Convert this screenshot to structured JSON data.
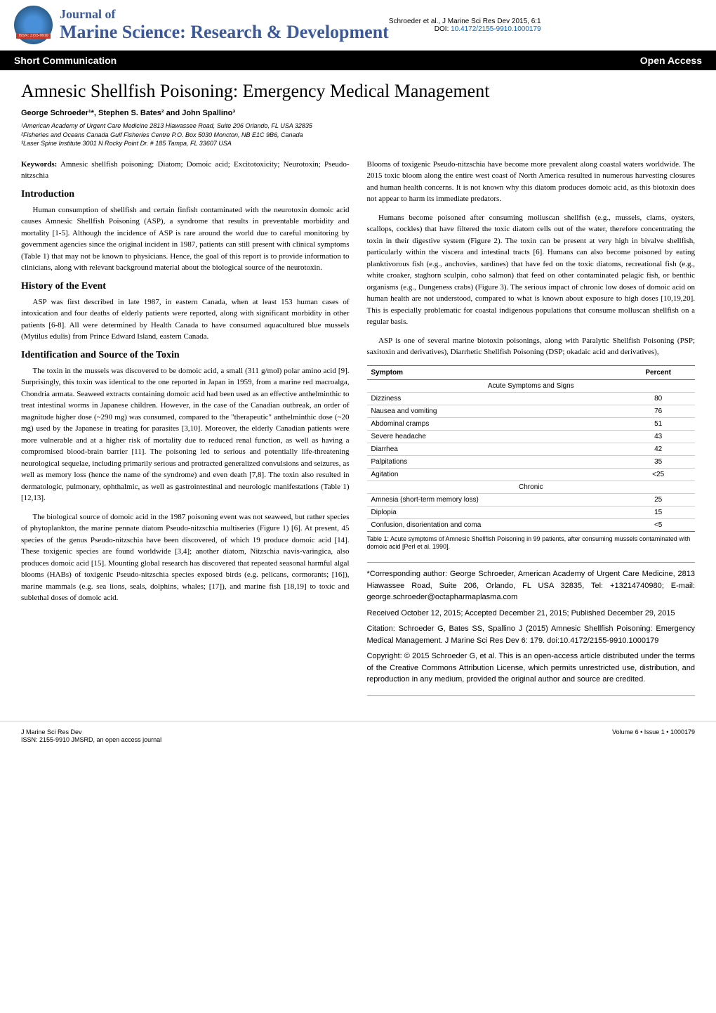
{
  "header": {
    "journal_of": "Journal of",
    "journal_name": "Marine Science: Research & Development",
    "citation": "Schroeder et al., J Marine Sci Res Dev 2015, 6:1",
    "doi_label": "DOI:",
    "doi": "10.4172/2155-9910.1000179",
    "issn_badge": "ISSN: 2155-9910"
  },
  "black_bar": {
    "left": "Short Communication",
    "right": "Open Access"
  },
  "article": {
    "title": "Amnesic Shellfish Poisoning: Emergency Medical Management",
    "authors": "George Schroeder¹*, Stephen S. Bates² and John Spallino³",
    "affil1": "¹American Academy of Urgent Care Medicine 2813 Hiawassee Road, Suite 206 Orlando, FL USA 32835",
    "affil2": "²Fisheries and Oceans Canada Gulf Fisheries Centre P.O. Box 5030 Moncton, NB E1C 9B6, Canada",
    "affil3": "³Laser Spine Institute 3001 N Rocky Point Dr. # 185 Tampa, FL 33607 USA"
  },
  "keywords": {
    "label": "Keywords:",
    "text": "Amnesic shellfish poisoning; Diatom; Domoic acid; Excitotoxicity; Neurotoxin; Pseudo-nitzschia"
  },
  "sections": {
    "intro_h": "Introduction",
    "intro_p1": "Human consumption of shellfish and certain finfish contaminated with the neurotoxin domoic acid causes Amnesic Shellfish Poisoning (ASP), a syndrome that results in preventable morbidity and mortality [1-5]. Although the incidence of ASP is rare around the world due to careful monitoring by government agencies since the original incident in 1987, patients can still present with clinical symptoms (Table 1) that may not be known to physicians. Hence, the goal of this report is to provide information to clinicians, along with relevant background material about the biological source of the neurotoxin.",
    "history_h": "History of the Event",
    "history_p1": "ASP was first described in late 1987, in eastern Canada, when at least 153 human cases of intoxication and four deaths of elderly patients were reported, along with significant morbidity in other patients [6-8]. All were determined by Health Canada to have consumed aquacultured blue mussels (Mytilus edulis) from Prince Edward Island, eastern Canada.",
    "ident_h": "Identification and Source of the Toxin",
    "ident_p1": "The toxin in the mussels was discovered to be domoic acid, a small (311 g/mol) polar amino acid [9]. Surprisingly, this toxin was identical to the one reported in Japan in 1959, from a marine red macroalga, Chondria armata. Seaweed extracts containing domoic acid had been used as an effective anthelminthic to treat intestinal worms in Japanese children. However, in the case of the Canadian outbreak, an order of magnitude higher dose (~290 mg) was consumed, compared to the \"therapeutic\" anthelminthic dose (~20 mg) used by the Japanese in treating for parasites [3,10]. Moreover, the elderly Canadian patients were more vulnerable and at a higher risk of mortality due to reduced renal function, as well as having a compromised blood-brain barrier [11]. The poisoning led to serious and potentially life-threatening neurological sequelae, including primarily serious and protracted generalized convulsions and seizures, as well as memory loss (hence the name of the syndrome) and even death [7,8]. The toxin also resulted in dermatologic, pulmonary, ophthalmic, as well as gastrointestinal and neurologic manifestations (Table 1) [12,13].",
    "ident_p2": "The biological source of domoic acid in the 1987 poisoning event was not seaweed, but rather species of phytoplankton, the marine pennate diatom Pseudo-nitzschia multiseries (Figure 1) [6]. At present, 45 species of the genus Pseudo-nitzschia have been discovered, of which 19 produce domoic acid [14]. These toxigenic species are found worldwide [3,4]; another diatom, Nitzschia navis-varingica, also produces domoic acid [15]. Mounting global research has discovered that repeated seasonal harmful algal blooms (HABs) of toxigenic Pseudo-nitzschia species exposed birds (e.g. pelicans, cormorants; [16]), marine mammals (e.g. sea lions, seals, dolphins, whales; [17]), and marine fish [18,19] to toxic and sublethal doses of domoic acid.",
    "col2_p1": "Blooms of toxigenic Pseudo-nitzschia have become more prevalent along coastal waters worldwide. The 2015 toxic bloom along the entire west coast of North America resulted in numerous harvesting closures and human health concerns. It is not known why this diatom produces domoic acid, as this biotoxin does not appear to harm its immediate predators.",
    "col2_p2": "Humans become poisoned after consuming molluscan shellfish (e.g., mussels, clams, oysters, scallops, cockles) that have filtered the toxic diatom cells out of the water, therefore concentrating the toxin in their digestive system (Figure 2). The toxin can be present at very high in bivalve shellfish, particularly within the viscera and intestinal tracts [6]. Humans can also become poisoned by eating planktivorous fish (e.g., anchovies, sardines) that have fed on the toxic diatoms, recreational fish (e.g., white croaker, staghorn sculpin, coho salmon) that feed on other contaminated pelagic fish, or benthic organisms (e.g., Dungeness crabs) (Figure 3). The serious impact of chronic low doses of domoic acid on human health are not understood, compared to what is known about exposure to high doses [10,19,20]. This is especially problematic for coastal indigenous populations that consume molluscan shellfish on a regular basis.",
    "col2_p3": "ASP is one of several marine biotoxin poisonings, along with Paralytic Shellfish Poisoning (PSP; saxitoxin and derivatives), Diarrhetic Shellfish Poisoning (DSP; okadaic acid and derivatives),"
  },
  "table1": {
    "type": "table",
    "columns": [
      "Symptom",
      "Percent"
    ],
    "column_widths": [
      "70%",
      "30%"
    ],
    "column_align": [
      "left",
      "center"
    ],
    "header_bg": "#ffffff",
    "border_color": "#666666",
    "row_border_color": "#cccccc",
    "font_size": 10,
    "sections": [
      {
        "heading": "Acute Symptoms and Signs",
        "rows": [
          [
            "Dizziness",
            "80"
          ],
          [
            "Nausea and vomiting",
            "76"
          ],
          [
            "Abdominal cramps",
            "51"
          ],
          [
            "Severe headache",
            "43"
          ],
          [
            "Diarrhea",
            "42"
          ],
          [
            "Palpitations",
            "35"
          ],
          [
            "Agitation",
            "<25"
          ]
        ]
      },
      {
        "heading": "Chronic",
        "rows": [
          [
            "Amnesia (short-term memory loss)",
            "25"
          ],
          [
            "Diplopia",
            "15"
          ],
          [
            "Confusion, disorientation and coma",
            "<5"
          ]
        ]
      }
    ],
    "caption": "Table 1: Acute symptoms of Amnesic Shellfish Poisoning in 99 patients, after consuming mussels contaminated with domoic acid [Perl et al. 1990]."
  },
  "infobox": {
    "corresponding": "*Corresponding author: George Schroeder, American Academy of Urgent Care Medicine, 2813 Hiawassee Road, Suite 206, Orlando, FL USA 32835, Tel: +13214740980; E-mail: george.schroeder@octapharmaplasma.com",
    "received": "Received October 12, 2015; Accepted December 21, 2015; Published December 29, 2015",
    "citation": "Citation: Schroeder G, Bates SS, Spallino J (2015) Amnesic Shellfish Poisoning: Emergency Medical Management. J Marine Sci Res Dev 6: 179. doi:10.4172/2155-9910.1000179",
    "copyright": "Copyright: © 2015 Schroeder G, et al. This is an open-access article distributed under the terms of the Creative Commons Attribution License, which permits unrestricted use, distribution, and reproduction in any medium, provided the original author and source are credited."
  },
  "footer": {
    "left1": "J Marine Sci Res Dev",
    "left2": "ISSN: 2155-9910 JMSRD, an open access journal",
    "right": "Volume 6 • Issue 1 • 1000179"
  },
  "colors": {
    "journal_title": "#3b5998",
    "doi_link": "#0066cc",
    "black_bar_bg": "#000000",
    "black_bar_text": "#ffffff",
    "body_text": "#000000",
    "email_link": "#0066cc"
  }
}
